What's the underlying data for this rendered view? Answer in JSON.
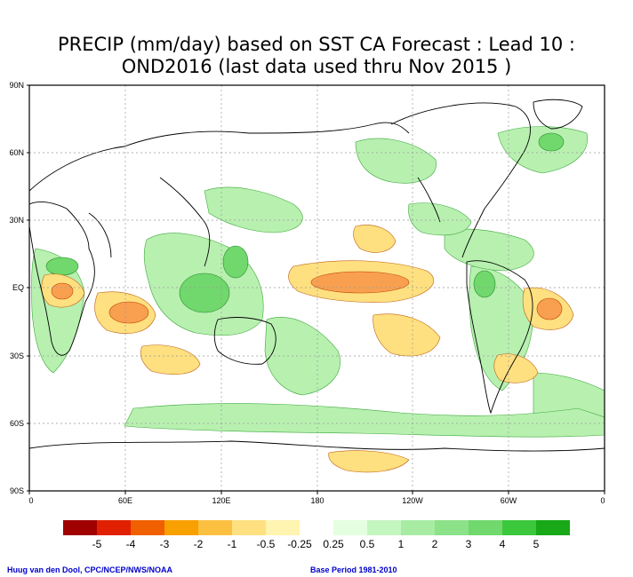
{
  "title": {
    "line1": "PRECIP (mm/day) based on SST CA Forecast : Lead 10 :",
    "line2": "OND2016 (last data used thru Nov 2015 )"
  },
  "axes": {
    "lat_ticks": [
      "90N",
      "60N",
      "30N",
      "EQ",
      "30S",
      "60S",
      "90S"
    ],
    "lon_ticks": [
      "0",
      "60E",
      "120E",
      "180",
      "120W",
      "60W",
      "0"
    ]
  },
  "legend": {
    "colors": [
      "#a00000",
      "#e02000",
      "#f06000",
      "#f8a000",
      "#fcc040",
      "#fee080",
      "#fff4b0",
      "#ffffff",
      "#e4ffe0",
      "#c4f6c0",
      "#a8eca4",
      "#8ce288",
      "#70d86c",
      "#3cc83c",
      "#18a818"
    ],
    "labels": [
      "-5",
      "-4",
      "-3",
      "-2",
      "-1",
      "-0.5",
      "-0.25",
      "0.25",
      "0.5",
      "1",
      "2",
      "3",
      "4",
      "5"
    ]
  },
  "footer": {
    "left": "Huug van den Dool, CPC/NCEP/NWS/NOAA",
    "right": "Base Period 1981-2010"
  },
  "colors": {
    "land_outline": "#000000",
    "grid": "#999999",
    "dry": "#f8a050",
    "wet": "#8ce288"
  }
}
